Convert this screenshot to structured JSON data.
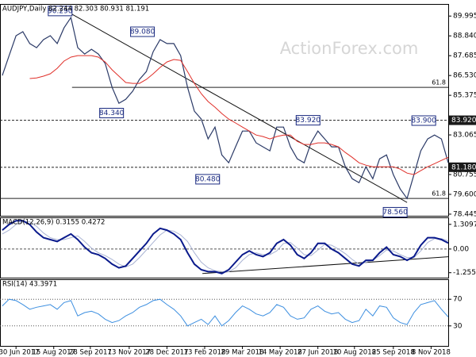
{
  "chart_data": [
    {
      "type": "line",
      "title": "AUDJPY,Daily  82.244 82.303 80.931 81.191",
      "watermark": "ActionForex.com",
      "x": [
        -12,
        -6,
        0,
        6,
        12,
        18,
        24,
        30,
        36,
        42,
        48,
        54,
        60,
        66,
        72,
        78,
        84,
        90,
        96,
        102,
        108,
        114,
        120,
        126,
        132,
        138,
        144,
        150,
        156,
        162,
        168,
        174,
        180,
        186,
        192,
        198,
        204,
        210,
        216,
        222,
        228,
        234,
        240,
        246,
        252,
        258,
        264,
        270,
        276,
        282,
        288,
        294,
        300,
        306,
        312,
        318,
        324,
        330,
        336,
        342,
        348,
        354,
        360,
        366,
        372,
        378
      ],
      "xlim": [
        -14,
        378
      ],
      "ylim": [
        78.35,
        90.7
      ],
      "yticks": [
        89.995,
        {
          "value": 88.84,
          "label": "88.840"
        },
        87.685,
        {
          "value": 86.53,
          "label": "86.530"
        },
        85.375,
        83.065,
        80.755,
        {
          "value": 79.6,
          "label": "79.600"
        },
        78.445
      ],
      "series": [
        {
          "name": "AUDJPY",
          "color": "#2b3a67",
          "width": 1.2,
          "values": [
            86.53,
            87.69,
            88.85,
            89.08,
            88.39,
            88.15,
            88.62,
            88.85,
            88.39,
            89.31,
            89.91,
            88.15,
            87.78,
            88.06,
            87.78,
            87.23,
            85.84,
            84.91,
            85.14,
            85.61,
            86.3,
            86.76,
            87.92,
            88.62,
            88.39,
            88.39,
            87.69,
            85.84,
            84.45,
            83.99,
            82.83,
            83.52,
            81.9,
            81.44,
            82.37,
            83.29,
            83.29,
            82.6,
            82.37,
            82.14,
            83.52,
            83.52,
            82.37,
            81.67,
            81.44,
            82.6,
            83.29,
            82.83,
            82.37,
            82.37,
            81.21,
            80.51,
            80.28,
            81.21,
            80.51,
            81.67,
            81.9,
            80.75,
            79.91,
            79.36,
            80.75,
            82.14,
            82.83,
            83.06,
            82.83,
            81.44
          ]
        },
        {
          "name": "MA",
          "color": "#e0302a",
          "width": 1,
          "values": [
            null,
            null,
            null,
            null,
            86.35,
            86.39,
            86.49,
            86.63,
            86.95,
            87.37,
            87.6,
            87.69,
            87.69,
            87.69,
            87.6,
            87.32,
            86.86,
            86.49,
            86.12,
            86.07,
            86.07,
            86.3,
            86.63,
            87.0,
            87.32,
            87.46,
            87.41,
            86.76,
            86.07,
            85.47,
            85.01,
            84.68,
            84.31,
            83.99,
            83.76,
            83.52,
            83.29,
            83.06,
            82.97,
            82.83,
            82.97,
            83.06,
            83.06,
            82.69,
            82.51,
            82.51,
            82.6,
            82.6,
            82.51,
            82.37,
            82.04,
            81.76,
            81.44,
            81.3,
            81.21,
            81.21,
            81.21,
            81.21,
            81.07,
            80.84,
            80.75,
            80.98,
            81.21,
            81.39,
            81.58,
            81.76
          ]
        }
      ],
      "hlines": [
        {
          "value": 85.84,
          "label": "61.8",
          "dashed": false,
          "x_start": 49
        },
        {
          "value": 79.36,
          "label": "61.8",
          "dashed": false
        },
        {
          "value": 83.92,
          "label": "83.920",
          "dashed": true
        },
        {
          "value": 81.18,
          "label": "81.180",
          "dashed": true
        }
      ],
      "trendlines": [
        {
          "x": [
            49,
            342
          ],
          "y": [
            90.1,
            79.13
          ]
        }
      ],
      "annotations": [
        {
          "label": "90.290",
          "value": 90.29,
          "x": 49,
          "side": "left"
        },
        {
          "label": "89.080",
          "value": 89.08,
          "x": 121,
          "side": "left"
        },
        {
          "label": "84.340",
          "value": 84.34,
          "x": 94,
          "side": "left"
        },
        {
          "label": "83.920",
          "value": 83.92,
          "x": 245,
          "side": "right"
        },
        {
          "label": "83.900",
          "value": 83.9,
          "x": 367,
          "side": "left"
        },
        {
          "label": "80.480",
          "value": 80.48,
          "x": 178,
          "side": "left"
        },
        {
          "label": "78.560",
          "value": 78.56,
          "x": 342,
          "side": "left"
        }
      ]
    },
    {
      "type": "line",
      "title": "MACD(12,26,9) 0.3155 0.4272",
      "x": [
        -12,
        -6,
        0,
        6,
        12,
        18,
        24,
        30,
        36,
        42,
        48,
        54,
        60,
        66,
        72,
        78,
        84,
        90,
        96,
        102,
        108,
        114,
        120,
        126,
        132,
        138,
        144,
        150,
        156,
        162,
        168,
        174,
        180,
        186,
        192,
        198,
        204,
        210,
        216,
        222,
        228,
        234,
        240,
        246,
        252,
        258,
        264,
        270,
        276,
        282,
        288,
        294,
        300,
        306,
        312,
        318,
        324,
        330,
        336,
        342,
        348,
        354,
        360,
        366,
        372,
        378
      ],
      "xlim": [
        -14,
        378
      ],
      "ylim": [
        -1.52,
        1.68
      ],
      "yticks": [
        1.3097,
        {
          "value": 0,
          "label": "0.00"
        },
        -1.2556
      ],
      "zero_line": true,
      "series": [
        {
          "name": "Signal",
          "color": "#a9b3d3",
          "width": 1,
          "values": [
            0.8,
            1.0,
            1.3,
            1.45,
            1.45,
            1.2,
            0.85,
            0.6,
            0.5,
            0.5,
            0.6,
            0.7,
            0.4,
            0.05,
            -0.2,
            -0.35,
            -0.55,
            -0.8,
            -0.95,
            -0.8,
            -0.45,
            -0.05,
            0.35,
            0.75,
            1.0,
            0.95,
            0.75,
            0.4,
            -0.2,
            -0.7,
            -1.0,
            -1.15,
            -1.2,
            -1.2,
            -1.0,
            -0.6,
            -0.3,
            -0.2,
            -0.3,
            -0.3,
            -0.1,
            0.3,
            0.35,
            0.05,
            -0.3,
            -0.35,
            -0.05,
            0.25,
            0.2,
            0.0,
            -0.25,
            -0.55,
            -0.8,
            -0.7,
            -0.6,
            -0.35,
            -0.05,
            -0.1,
            -0.3,
            -0.45,
            -0.45,
            -0.1,
            0.35,
            0.55,
            0.55,
            0.43
          ]
        },
        {
          "name": "MACD",
          "color": "#0a1a8c",
          "width": 2,
          "values": [
            1.0,
            1.3,
            1.5,
            1.5,
            1.3,
            0.9,
            0.6,
            0.5,
            0.4,
            0.6,
            0.8,
            0.5,
            0.1,
            -0.2,
            -0.3,
            -0.5,
            -0.8,
            -1.0,
            -0.9,
            -0.5,
            -0.1,
            0.3,
            0.8,
            1.1,
            1.0,
            0.8,
            0.5,
            -0.2,
            -0.8,
            -1.1,
            -1.2,
            -1.2,
            -1.3,
            -1.1,
            -0.7,
            -0.3,
            -0.1,
            -0.3,
            -0.4,
            -0.2,
            0.3,
            0.5,
            0.2,
            -0.3,
            -0.5,
            -0.2,
            0.3,
            0.3,
            0.0,
            -0.2,
            -0.5,
            -0.8,
            -0.9,
            -0.6,
            -0.6,
            -0.2,
            0.1,
            -0.3,
            -0.4,
            -0.6,
            -0.4,
            0.2,
            0.6,
            0.6,
            0.5,
            0.32
          ]
        }
      ],
      "trendlines": [
        {
          "x": [
            163,
            378
          ],
          "y": [
            -1.3,
            -0.41
          ]
        }
      ]
    },
    {
      "type": "line",
      "title": "RSI(14) 43.3971",
      "x": [
        -12,
        -6,
        0,
        6,
        12,
        18,
        24,
        30,
        36,
        42,
        48,
        54,
        60,
        66,
        72,
        78,
        84,
        90,
        96,
        102,
        108,
        114,
        120,
        126,
        132,
        138,
        144,
        150,
        156,
        162,
        168,
        174,
        180,
        186,
        192,
        198,
        204,
        210,
        216,
        222,
        228,
        234,
        240,
        246,
        252,
        258,
        264,
        270,
        276,
        282,
        288,
        294,
        300,
        306,
        312,
        318,
        324,
        330,
        336,
        342,
        348,
        354,
        360,
        366,
        372,
        378
      ],
      "xlim": [
        -14,
        378
      ],
      "ylim": [
        0,
        100
      ],
      "yticks": [
        70,
        30
      ],
      "grid": true,
      "xticks": [
        {
          "value": 0,
          "label": "30 Jun 2017"
        },
        {
          "value": 33,
          "label": "15 Aug 2017"
        },
        {
          "value": 65,
          "label": "28 Sep 2017"
        },
        {
          "value": 99,
          "label": "13 Nov 2017"
        },
        {
          "value": 132,
          "label": "28 Dec 2017"
        },
        {
          "value": 165,
          "label": "13 Feb 2018"
        },
        {
          "value": 198,
          "label": "29 Mar 2018"
        },
        {
          "value": 231,
          "label": "14 May 2018"
        },
        {
          "value": 264,
          "label": "27 Jun 2018"
        },
        {
          "value": 296,
          "label": "10 Aug 2018"
        },
        {
          "value": 330,
          "label": "25 Sep 2018"
        },
        {
          "value": 363,
          "label": "8 Nov 2018"
        }
      ],
      "series": [
        {
          "name": "RSI",
          "color": "#3d8fe0",
          "width": 1,
          "values": [
            60,
            70,
            68,
            62,
            55,
            58,
            60,
            62,
            55,
            65,
            68,
            45,
            50,
            52,
            48,
            40,
            35,
            38,
            45,
            50,
            58,
            62,
            68,
            70,
            62,
            55,
            45,
            30,
            35,
            40,
            32,
            45,
            30,
            38,
            50,
            60,
            55,
            48,
            45,
            50,
            62,
            58,
            45,
            40,
            42,
            55,
            60,
            52,
            48,
            50,
            40,
            35,
            38,
            55,
            45,
            60,
            58,
            42,
            35,
            32,
            50,
            62,
            65,
            68,
            55,
            43.4
          ]
        }
      ]
    }
  ]
}
